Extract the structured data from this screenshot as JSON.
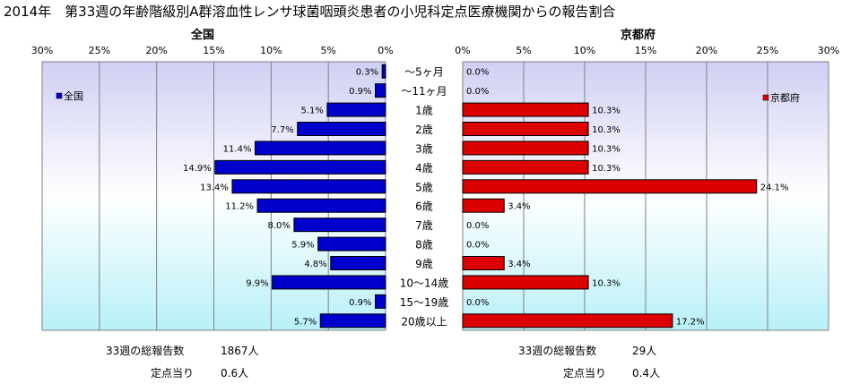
{
  "title": "2014年　第33週の年齢階級別A群溶血性レンサ球菌咽頭炎患者の小児科定点医療機関からの報告割合",
  "chart_data": [
    {
      "type": "bar",
      "orientation": "horizontal",
      "title": "全国",
      "legend": "全国",
      "legend_position": "top-left",
      "color": "#0000cc",
      "axis_reversed": true,
      "xlim": [
        0,
        30
      ],
      "ticks": [
        "30%",
        "25%",
        "20%",
        "15%",
        "10%",
        "5%",
        "0%"
      ],
      "categories": [
        "〜5ヶ月",
        "〜11ヶ月",
        "1歳",
        "2歳",
        "3歳",
        "4歳",
        "5歳",
        "6歳",
        "7歳",
        "8歳",
        "9歳",
        "10〜14歳",
        "15〜19歳",
        "20歳以上"
      ],
      "values": [
        0.3,
        0.9,
        5.1,
        7.7,
        11.4,
        14.9,
        13.4,
        11.2,
        8.0,
        5.9,
        4.8,
        9.9,
        0.9,
        5.7
      ],
      "labels": [
        "0.3%",
        "0.9%",
        "5.1%",
        "7.7%",
        "11.4%",
        "14.9%",
        "13.4%",
        "11.2%",
        "8.0%",
        "5.9%",
        "4.8%",
        "9.9%",
        "0.9%",
        "5.7%"
      ]
    },
    {
      "type": "bar",
      "orientation": "horizontal",
      "title": "京都府",
      "legend": "京都府",
      "legend_position": "top-right",
      "color": "#dd0000",
      "xlim": [
        0,
        30
      ],
      "ticks": [
        "0%",
        "5%",
        "10%",
        "15%",
        "20%",
        "25%",
        "30%"
      ],
      "categories": [
        "〜5ヶ月",
        "〜11ヶ月",
        "1歳",
        "2歳",
        "3歳",
        "4歳",
        "5歳",
        "6歳",
        "7歳",
        "8歳",
        "9歳",
        "10〜14歳",
        "15〜19歳",
        "20歳以上"
      ],
      "values": [
        0.0,
        0.0,
        10.3,
        10.3,
        10.3,
        10.3,
        24.1,
        3.4,
        0.0,
        0.0,
        3.4,
        10.3,
        0.0,
        17.2
      ],
      "labels": [
        "0.0%",
        "0.0%",
        "10.3%",
        "10.3%",
        "10.3%",
        "10.3%",
        "24.1%",
        "3.4%",
        "0.0%",
        "0.0%",
        "3.4%",
        "10.3%",
        "0.0%",
        "17.2%"
      ]
    }
  ],
  "stats": {
    "national": {
      "total_label": "33週の総報告数",
      "total_value": "1867人",
      "per_label": "定点当り",
      "per_value": "0.6人"
    },
    "kyoto": {
      "total_label": "33週の総報告数",
      "total_value": "29人",
      "per_label": "定点当り",
      "per_value": "0.4人"
    }
  }
}
